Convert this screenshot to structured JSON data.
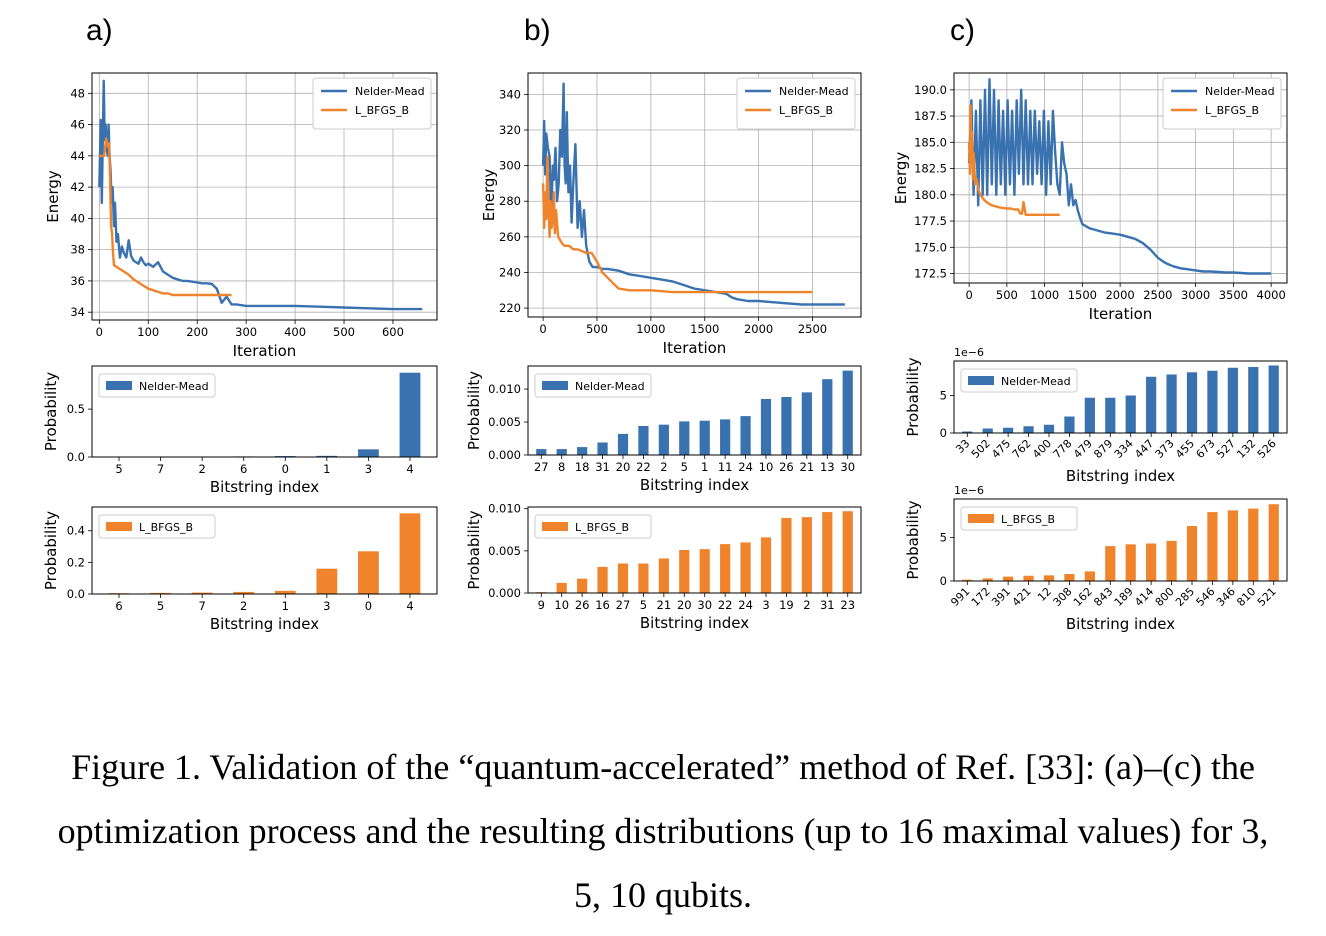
{
  "panels": [
    {
      "letter": "a)",
      "energy": {
        "type": "line",
        "xlabel": "Iteration",
        "ylabel": "Energy",
        "xlim": [
          -15,
          690
        ],
        "ylim": [
          33.5,
          49.3
        ],
        "xticks": [
          0,
          100,
          200,
          300,
          400,
          500,
          600
        ],
        "yticks": [
          34,
          36,
          38,
          40,
          42,
          44,
          46,
          48
        ],
        "legend": "top-right",
        "series": [
          {
            "name": "Nelder-Mead",
            "color": "#3a72b0",
            "x": [
              0,
              3,
              5,
              7,
              9,
              10,
              11,
              13,
              15,
              17,
              19,
              21,
              23,
              25,
              27,
              30,
              32,
              35,
              38,
              42,
              46,
              50,
              55,
              60,
              65,
              70,
              75,
              80,
              85,
              90,
              95,
              100,
              110,
              120,
              130,
              140,
              150,
              160,
              170,
              180,
              190,
              200,
              210,
              220,
              230,
              240,
              250,
              260,
              270,
              280,
              300,
              350,
              400,
              450,
              500,
              550,
              600,
              660
            ],
            "y": [
              42,
              46.3,
              41,
              45,
              48.8,
              47,
              45,
              46,
              44.5,
              44,
              46,
              44,
              43,
              41,
              42,
              39.5,
              41,
              38.5,
              39,
              37.5,
              38.2,
              37.8,
              37.5,
              38.6,
              37.6,
              37.3,
              37.2,
              37.1,
              37.5,
              37.2,
              37.0,
              37.1,
              36.9,
              37.2,
              36.6,
              36.4,
              36.2,
              36.1,
              36.0,
              36.0,
              35.95,
              35.9,
              35.85,
              35.85,
              35.8,
              35.5,
              34.6,
              35.0,
              34.5,
              34.5,
              34.4,
              34.4,
              34.4,
              34.35,
              34.3,
              34.25,
              34.2,
              34.2
            ]
          },
          {
            "name": "L_BFGS_B",
            "color": "#f0842c",
            "x": [
              0,
              10,
              12,
              14,
              16,
              18,
              20,
              22,
              24,
              26,
              28,
              30,
              35,
              40,
              50,
              60,
              70,
              80,
              90,
              100,
              110,
              120,
              130,
              140,
              150,
              200,
              250,
              270
            ],
            "y": [
              44.0,
              44.0,
              44.6,
              45.1,
              44.8,
              44.6,
              44.8,
              42.5,
              39.5,
              39.0,
              37.8,
              37.0,
              36.9,
              36.8,
              36.6,
              36.4,
              36.1,
              35.9,
              35.7,
              35.5,
              35.4,
              35.3,
              35.2,
              35.2,
              35.1,
              35.1,
              35.1,
              35.1
            ]
          }
        ]
      },
      "bars": [
        {
          "type": "bar",
          "name": "Nelder-Mead",
          "color": "#3a72b0",
          "categories": [
            "5",
            "7",
            "2",
            "6",
            "0",
            "1",
            "3",
            "4"
          ],
          "values": [
            0.002,
            0.003,
            0.004,
            0.006,
            0.01,
            0.012,
            0.08,
            0.88
          ],
          "ylim": [
            0,
            0.95
          ],
          "yticks": [
            0.0,
            0.5
          ],
          "ytick_labels": [
            "0.0",
            "0.5"
          ],
          "xlabel": "Bitstring index",
          "ylabel": "Probability"
        },
        {
          "type": "bar",
          "name": "L_BFGS_B",
          "color": "#f0842c",
          "categories": [
            "6",
            "5",
            "7",
            "2",
            "1",
            "3",
            "0",
            "4"
          ],
          "values": [
            0.005,
            0.007,
            0.009,
            0.013,
            0.02,
            0.16,
            0.27,
            0.51
          ],
          "ylim": [
            0,
            0.55
          ],
          "yticks": [
            0.0,
            0.2,
            0.4
          ],
          "ytick_labels": [
            "0.0",
            "0.2",
            "0.4"
          ],
          "xlabel": "Bitstring index",
          "ylabel": "Probability"
        }
      ]
    },
    {
      "letter": "b)",
      "energy": {
        "type": "line",
        "xlabel": "Iteration",
        "ylabel": "Energy",
        "xlim": [
          -140,
          2950
        ],
        "ylim": [
          215,
          352
        ],
        "xticks": [
          0,
          500,
          1000,
          1500,
          2000,
          2500
        ],
        "yticks": [
          220,
          240,
          260,
          280,
          300,
          320,
          340
        ],
        "legend": "top-right",
        "series": [
          {
            "name": "Nelder-Mead",
            "color": "#3a72b0",
            "x": [
              0,
              10,
              20,
              30,
              45,
              60,
              75,
              90,
              100,
              115,
              130,
              145,
              160,
              175,
              190,
              200,
              210,
              220,
              235,
              250,
              265,
              280,
              300,
              320,
              340,
              360,
              380,
              400,
              430,
              460,
              500,
              550,
              600,
              700,
              800,
              900,
              1000,
              1100,
              1200,
              1300,
              1400,
              1500,
              1600,
              1700,
              1750,
              1800,
              1900,
              2000,
              2200,
              2400,
              2600,
              2800
            ],
            "y": [
              300,
              325,
              295,
              318,
              310,
              305,
              272,
              300,
              292,
              310,
              280,
              290,
              320,
              305,
              346,
              300,
              290,
              330,
              285,
              300,
              268,
              290,
              312,
              265,
              280,
              260,
              275,
              255,
              246,
              243,
              243,
              242,
              242,
              241,
              239,
              238,
              237,
              236,
              235,
              233,
              231,
              230,
              229,
              228,
              226,
              225,
              224,
              224,
              223,
              222,
              222,
              222
            ]
          },
          {
            "name": "L_BFGS_B",
            "color": "#f0842c",
            "x": [
              0,
              10,
              20,
              30,
              40,
              50,
              60,
              70,
              80,
              90,
              100,
              110,
              120,
              140,
              160,
              180,
              200,
              240,
              280,
              320,
              360,
              400,
              450,
              500,
              550,
              600,
              650,
              700,
              800,
              1000,
              1200,
              1500,
              2000,
              2500
            ],
            "y": [
              290,
              265,
              285,
              270,
              305,
              275,
              260,
              280,
              265,
              270,
              285,
              262,
              275,
              260,
              258,
              256,
              255,
              255,
              253,
              253,
              252,
              251,
              251,
              246,
              240,
              237,
              234,
              231,
              230,
              230,
              229,
              229,
              229,
              229
            ]
          }
        ]
      },
      "bars": [
        {
          "type": "bar",
          "name": "Nelder-Mead",
          "color": "#3a72b0",
          "categories": [
            "27",
            "8",
            "18",
            "31",
            "20",
            "22",
            "2",
            "5",
            "1",
            "11",
            "24",
            "10",
            "26",
            "21",
            "13",
            "30"
          ],
          "values": [
            0.0009,
            0.0009,
            0.0012,
            0.0019,
            0.0032,
            0.0044,
            0.0046,
            0.0051,
            0.0052,
            0.0054,
            0.0059,
            0.0085,
            0.0088,
            0.0095,
            0.0115,
            0.0128
          ],
          "ylim": [
            0,
            0.0135
          ],
          "yticks": [
            0,
            0.005,
            0.01
          ],
          "ytick_labels": [
            "0.000",
            "0.005",
            "0.010"
          ],
          "xlabel": "Bitstring index",
          "ylabel": "Probability"
        },
        {
          "type": "bar",
          "name": "L_BFGS_B",
          "color": "#f0842c",
          "categories": [
            "9",
            "10",
            "26",
            "16",
            "27",
            "5",
            "21",
            "20",
            "30",
            "22",
            "24",
            "3",
            "19",
            "2",
            "31",
            "23"
          ],
          "values": [
            0.0001,
            0.0012,
            0.0017,
            0.0031,
            0.0035,
            0.0035,
            0.0041,
            0.0051,
            0.0052,
            0.0058,
            0.006,
            0.0066,
            0.0089,
            0.009,
            0.0096,
            0.0097
          ],
          "ylim": [
            0,
            0.0102
          ],
          "yticks": [
            0,
            0.005,
            0.01
          ],
          "ytick_labels": [
            "0.000",
            "0.005",
            "0.010"
          ],
          "xlabel": "Bitstring index",
          "ylabel": "Probability"
        }
      ]
    },
    {
      "letter": "c)",
      "energy": {
        "type": "line",
        "xlabel": "Iteration",
        "ylabel": "Energy",
        "xlim": [
          -200,
          4210
        ],
        "ylim": [
          171.6,
          191.6
        ],
        "xticks": [
          0,
          500,
          1000,
          1500,
          2000,
          2500,
          3000,
          3500,
          4000
        ],
        "yticks": [
          172.5,
          175.0,
          177.5,
          180.0,
          182.5,
          185.0,
          187.5,
          190.0
        ],
        "ytick_labels": [
          "172.5",
          "175.0",
          "177.5",
          "180.0",
          "182.5",
          "185.0",
          "187.5",
          "190.0"
        ],
        "legend": "top-right",
        "series": [
          {
            "name": "Nelder-Mead",
            "color": "#3a72b0",
            "x": [
              0,
              30,
              60,
              90,
              120,
              150,
              180,
              210,
              240,
              270,
              300,
              330,
              360,
              390,
              420,
              450,
              480,
              510,
              540,
              570,
              600,
              630,
              660,
              690,
              720,
              750,
              780,
              810,
              840,
              870,
              900,
              930,
              960,
              990,
              1020,
              1050,
              1080,
              1110,
              1140,
              1170,
              1200,
              1230,
              1260,
              1290,
              1320,
              1350,
              1380,
              1410,
              1440,
              1470,
              1500,
              1600,
              1700,
              1800,
              1900,
              2000,
              2100,
              2200,
              2300,
              2400,
              2500,
              2600,
              2700,
              2800,
              2900,
              3000,
              3100,
              3200,
              3300,
              3400,
              3500,
              3600,
              3700,
              3800,
              3900,
              4000
            ],
            "y": [
              183,
              189,
              180,
              188,
              179,
              189,
              180,
              190,
              180,
              191,
              181,
              190,
              180,
              189,
              181,
              188,
              180,
              189,
              181,
              188,
              180,
              189,
              182,
              190,
              181,
              189,
              181,
              188,
              181,
              188,
              182,
              187,
              181,
              188,
              180,
              187,
              181,
              188,
              184,
              181,
              180,
              185,
              183,
              182,
              179,
              181,
              179,
              179.5,
              178.5,
              177.8,
              177.2,
              176.8,
              176.6,
              176.4,
              176.3,
              176.2,
              176.0,
              175.8,
              175.4,
              174.8,
              174.0,
              173.5,
              173.2,
              173.0,
              172.9,
              172.8,
              172.7,
              172.7,
              172.65,
              172.6,
              172.6,
              172.55,
              172.5,
              172.5,
              172.5,
              172.5
            ]
          },
          {
            "name": "L_BFGS_B",
            "color": "#f0842c",
            "x": [
              0,
              10,
              20,
              30,
              40,
              50,
              60,
              80,
              100,
              120,
              150,
              200,
              250,
              300,
              400,
              500,
              550,
              600,
              650,
              680,
              700,
              720,
              750,
              800,
              1000,
              1200
            ],
            "y": [
              185,
              182,
              188.5,
              183,
              186,
              181.5,
              184,
              181,
              181.5,
              180.5,
              180,
              179.5,
              179.2,
              179,
              178.8,
              178.7,
              178.7,
              178.6,
              178.6,
              178.2,
              178.2,
              179.3,
              178.1,
              178.1,
              178.1,
              178.1
            ]
          }
        ]
      },
      "bars": [
        {
          "type": "bar",
          "name": "Nelder-Mead",
          "color": "#3a72b0",
          "exponent": "1e−6",
          "categories": [
            "33",
            "502",
            "475",
            "762",
            "400",
            "778",
            "479",
            "879",
            "334",
            "447",
            "373",
            "455",
            "673",
            "527",
            "132",
            "526"
          ],
          "values": [
            0.2,
            0.6,
            0.7,
            0.9,
            1.1,
            2.2,
            4.7,
            4.7,
            5.0,
            7.5,
            7.8,
            8.1,
            8.3,
            8.7,
            8.8,
            9.0
          ],
          "ylim": [
            0,
            9.6
          ],
          "yticks": [
            0,
            5
          ],
          "ytick_labels": [
            "0",
            "5"
          ],
          "xlabel": "Bitstring index",
          "ylabel": "Probability"
        },
        {
          "type": "bar",
          "name": "L_BFGS_B",
          "color": "#f0842c",
          "exponent": "1e−6",
          "categories": [
            "991",
            "172",
            "391",
            "421",
            "12",
            "308",
            "162",
            "843",
            "189",
            "414",
            "800",
            "285",
            "546",
            "346",
            "810",
            "521"
          ],
          "values": [
            0.15,
            0.3,
            0.5,
            0.6,
            0.65,
            0.8,
            1.1,
            4.0,
            4.2,
            4.3,
            4.6,
            6.3,
            7.9,
            8.1,
            8.3,
            8.8
          ],
          "ylim": [
            0,
            9.4
          ],
          "yticks": [
            0,
            5
          ],
          "ytick_labels": [
            "0",
            "5"
          ],
          "xlabel": "Bitstring index",
          "ylabel": "Probability"
        }
      ]
    }
  ],
  "caption": {
    "line1": "Figure 1. Validation of the “quantum-accelerated” method of Ref. [33]: (a)–(c) the",
    "line2": "optimization process and the resulting distributions (up to 16 maximal values) for 3,",
    "line3": "5, 10 qubits."
  }
}
